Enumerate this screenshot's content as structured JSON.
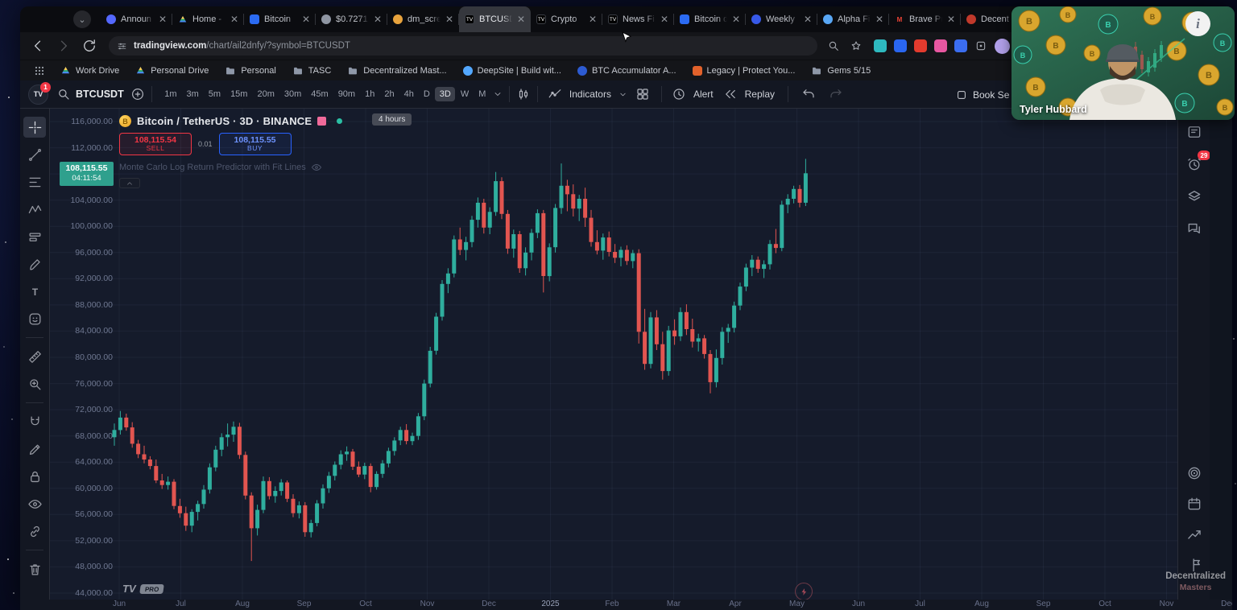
{
  "browser": {
    "tabs": [
      {
        "title": "Announ",
        "icon": "circle",
        "color": "#5468ff"
      },
      {
        "title": "Home -",
        "icon": "drive",
        "color": "#4b8bf5"
      },
      {
        "title": "Bitcoin",
        "icon": "square",
        "color": "#2b6bf3"
      },
      {
        "title": "$0.7271",
        "icon": "circle",
        "color": "#8f96a3"
      },
      {
        "title": "dm_scre",
        "icon": "circle",
        "color": "#e8a33d"
      },
      {
        "title": "BTCUSD",
        "icon": "tv",
        "color": "#000000",
        "active": true
      },
      {
        "title": "Crypto",
        "icon": "tv",
        "color": "#000000"
      },
      {
        "title": "News Fi",
        "icon": "tv",
        "color": "#000000"
      },
      {
        "title": "Bitcoin d",
        "icon": "square",
        "color": "#2b6bf3"
      },
      {
        "title": "Weekly",
        "icon": "circle",
        "color": "#3759e8"
      },
      {
        "title": "Alpha Fi",
        "icon": "circle",
        "color": "#59a7f5"
      },
      {
        "title": "Brave Pr",
        "icon": "m",
        "color": "#ea4335"
      },
      {
        "title": "Decent",
        "icon": "circle",
        "color": "#c0392b"
      },
      {
        "title": "",
        "icon": "square",
        "color": "#2b6bf3"
      }
    ],
    "url_domain": "tradingview.com",
    "url_path": "/chart/ail2dnfy/?symbol=BTCUSDT",
    "bookmarks": [
      {
        "label": "Work Drive",
        "icon": "drive"
      },
      {
        "label": "Personal Drive",
        "icon": "drive"
      },
      {
        "label": "Personal",
        "icon": "folder"
      },
      {
        "label": "TASC",
        "icon": "folder"
      },
      {
        "label": "Decentralized Mast...",
        "icon": "folder"
      },
      {
        "label": "DeepSite | Build wit...",
        "icon": "dot",
        "color": "#53a8ff"
      },
      {
        "label": "BTC Accumulator A...",
        "icon": "dot",
        "color": "#2d5bd1"
      },
      {
        "label": "Legacy | Protect You...",
        "icon": "sq",
        "color": "#e2622b"
      },
      {
        "label": "Gems 5/15",
        "icon": "folder"
      }
    ]
  },
  "tv_toolbar": {
    "logo_badge": "1",
    "symbol": "BTCUSDT",
    "timeframes": [
      "1m",
      "3m",
      "5m",
      "15m",
      "20m",
      "30m",
      "45m",
      "90m",
      "1h",
      "2h",
      "4h",
      "D",
      "3D",
      "W",
      "M"
    ],
    "active_timeframe": "3D",
    "indicators_label": "Indicators",
    "alert_label": "Alert",
    "replay_label": "Replay",
    "book_label": "Book Se"
  },
  "left_toolbar": {
    "active_tool": "crosshair",
    "tools": [
      "crosshair",
      "trend-line",
      "fib-retracement",
      "xabcd-pattern",
      "long-position",
      "brush",
      "text",
      "emoji",
      "|",
      "ruler",
      "zoom-in",
      "|",
      "magnet",
      "drawing-mode",
      "lock",
      "hide-drawings",
      "link-drawings",
      "|",
      "remove-drawings"
    ]
  },
  "legend": {
    "title": "Bitcoin / TetherUS · 3D · BINANCE",
    "sell_price": "108,115.54",
    "sell_label": "SELL",
    "spread": "0.01",
    "buy_price": "108,115.55",
    "buy_label": "BUY",
    "indicator": "Monte Carlo Log Return Predictor with Fit Lines",
    "interval_tooltip": "4 hours"
  },
  "price_scale": {
    "current_price": "108,115.55",
    "current_price_value": 108115.55,
    "countdown": "04:11:54",
    "labels": [
      {
        "price": 116000,
        "text": "116,000.00"
      },
      {
        "price": 112000,
        "text": "112,000.00"
      },
      {
        "price": 104000,
        "text": "104,000.00"
      },
      {
        "price": 100000,
        "text": "100,000.00"
      },
      {
        "price": 96000,
        "text": "96,000.00"
      },
      {
        "price": 92000,
        "text": "92,000.00"
      },
      {
        "price": 88000,
        "text": "88,000.00"
      },
      {
        "price": 84000,
        "text": "84,000.00"
      },
      {
        "price": 80000,
        "text": "80,000.00"
      },
      {
        "price": 76000,
        "text": "76,000.00"
      },
      {
        "price": 72000,
        "text": "72,000.00"
      },
      {
        "price": 68000,
        "text": "68,000.00"
      },
      {
        "price": 64000,
        "text": "64,000.00"
      },
      {
        "price": 60000,
        "text": "60,000.00"
      },
      {
        "price": 56000,
        "text": "56,000.00"
      },
      {
        "price": 52000,
        "text": "52,000.00"
      },
      {
        "price": 48000,
        "text": "48,000.00"
      },
      {
        "price": 44000,
        "text": "44,000.00"
      }
    ]
  },
  "chart_data": {
    "type": "candlestick",
    "title": "Bitcoin / TetherUS",
    "symbol": "BTCUSDT",
    "interval": "3D",
    "exchange": "BINANCE",
    "ylim": [
      44000,
      116000
    ],
    "y_step": 4000,
    "grid": true,
    "x_months": [
      "Jun",
      "Jul",
      "Aug",
      "Sep",
      "Oct",
      "Nov",
      "Dec",
      "2025",
      "Feb",
      "Mar",
      "Apr",
      "May",
      "Jun",
      "Jul",
      "Aug",
      "Sep",
      "Oct",
      "Nov",
      "Dec"
    ],
    "candles": [
      [
        67800,
        69900,
        66500,
        68900
      ],
      [
        68900,
        71800,
        68200,
        70800
      ],
      [
        70800,
        71400,
        68800,
        69300
      ],
      [
        69300,
        70100,
        66200,
        66800
      ],
      [
        66800,
        67400,
        64600,
        65200
      ],
      [
        65200,
        66500,
        63800,
        64400
      ],
      [
        64400,
        64900,
        62900,
        63400
      ],
      [
        63400,
        64400,
        60800,
        61200
      ],
      [
        61200,
        62200,
        59900,
        60500
      ],
      [
        60500,
        61800,
        59800,
        61000
      ],
      [
        61000,
        61400,
        56800,
        57300
      ],
      [
        57300,
        58400,
        55500,
        56200
      ],
      [
        56200,
        57200,
        53500,
        54300
      ],
      [
        54300,
        56800,
        53300,
        56400
      ],
      [
        56400,
        58100,
        55100,
        57600
      ],
      [
        57600,
        60500,
        56900,
        59800
      ],
      [
        59800,
        63800,
        59200,
        63200
      ],
      [
        63200,
        66500,
        62600,
        65900
      ],
      [
        65900,
        68400,
        64900,
        67800
      ],
      [
        67800,
        69900,
        66400,
        68200
      ],
      [
        68200,
        70200,
        67100,
        69400
      ],
      [
        69400,
        70000,
        64500,
        65100
      ],
      [
        65100,
        65600,
        58300,
        58900
      ],
      [
        58900,
        59400,
        48900,
        53900
      ],
      [
        53900,
        57500,
        52800,
        56700
      ],
      [
        56700,
        61800,
        56200,
        61100
      ],
      [
        61100,
        61700,
        58300,
        58800
      ],
      [
        58800,
        60300,
        57800,
        59600
      ],
      [
        59600,
        61400,
        58900,
        60900
      ],
      [
        60900,
        61200,
        57900,
        58400
      ],
      [
        58400,
        59100,
        55600,
        56200
      ],
      [
        56200,
        58000,
        55400,
        57400
      ],
      [
        57400,
        57900,
        52600,
        53300
      ],
      [
        53300,
        55200,
        52500,
        54700
      ],
      [
        54700,
        58200,
        54200,
        57700
      ],
      [
        57700,
        60600,
        56900,
        60000
      ],
      [
        60000,
        62500,
        59300,
        61900
      ],
      [
        61900,
        64100,
        61200,
        63600
      ],
      [
        63600,
        65800,
        62900,
        65200
      ],
      [
        65200,
        66400,
        64200,
        65600
      ],
      [
        65600,
        66000,
        62800,
        63300
      ],
      [
        63300,
        64100,
        61700,
        62100
      ],
      [
        62100,
        63900,
        61400,
        63400
      ],
      [
        63400,
        63800,
        59400,
        60200
      ],
      [
        60200,
        62600,
        59800,
        62200
      ],
      [
        62200,
        64300,
        61600,
        63800
      ],
      [
        63800,
        66200,
        63200,
        65700
      ],
      [
        65700,
        67800,
        65000,
        67300
      ],
      [
        67300,
        69400,
        66600,
        68900
      ],
      [
        68900,
        69800,
        66700,
        67200
      ],
      [
        67200,
        68500,
        66600,
        68000
      ],
      [
        68000,
        71500,
        67400,
        71000
      ],
      [
        71000,
        76600,
        70400,
        76000
      ],
      [
        76000,
        81600,
        75400,
        81000
      ],
      [
        81000,
        86800,
        80400,
        86200
      ],
      [
        86200,
        91800,
        85600,
        91200
      ],
      [
        91200,
        93600,
        89800,
        92800
      ],
      [
        92800,
        98600,
        92200,
        98000
      ],
      [
        98000,
        99800,
        95600,
        96400
      ],
      [
        96400,
        98400,
        94800,
        97600
      ],
      [
        97600,
        101600,
        96800,
        101000
      ],
      [
        101000,
        104400,
        99800,
        103600
      ],
      [
        103600,
        104200,
        98900,
        99800
      ],
      [
        99800,
        102900,
        98800,
        102200
      ],
      [
        102200,
        108300,
        101600,
        106900
      ],
      [
        106900,
        107500,
        101100,
        101900
      ],
      [
        101900,
        102500,
        95800,
        96600
      ],
      [
        96600,
        99500,
        95200,
        98800
      ],
      [
        98800,
        99300,
        92900,
        93600
      ],
      [
        93600,
        96800,
        92500,
        96000
      ],
      [
        96000,
        99600,
        94800,
        99000
      ],
      [
        99000,
        102600,
        98200,
        102000
      ],
      [
        102000,
        102500,
        89900,
        92400
      ],
      [
        92400,
        97400,
        91600,
        96800
      ],
      [
        96800,
        103400,
        96000,
        102800
      ],
      [
        102800,
        109600,
        101900,
        106200
      ],
      [
        106200,
        107100,
        102300,
        104900
      ],
      [
        104900,
        106400,
        101500,
        102700
      ],
      [
        102700,
        104800,
        100800,
        104200
      ],
      [
        104200,
        105900,
        99900,
        101300
      ],
      [
        101300,
        102500,
        96900,
        97600
      ],
      [
        97600,
        99400,
        95700,
        96300
      ],
      [
        96300,
        98900,
        94900,
        98300
      ],
      [
        98300,
        99200,
        95400,
        96100
      ],
      [
        96100,
        97300,
        94400,
        95200
      ],
      [
        95200,
        96900,
        93900,
        96400
      ],
      [
        96400,
        97100,
        94100,
        94700
      ],
      [
        94700,
        96400,
        93600,
        95900
      ],
      [
        95900,
        96500,
        82100,
        83900
      ],
      [
        83900,
        87400,
        78100,
        79000
      ],
      [
        79000,
        86900,
        78300,
        86100
      ],
      [
        86100,
        87200,
        81100,
        82000
      ],
      [
        82000,
        83900,
        76600,
        77900
      ],
      [
        77900,
        84800,
        77200,
        84100
      ],
      [
        84100,
        85800,
        81900,
        83200
      ],
      [
        83200,
        87600,
        82500,
        86900
      ],
      [
        86900,
        88100,
        83400,
        84300
      ],
      [
        84300,
        85900,
        81500,
        82400
      ],
      [
        82400,
        83600,
        80900,
        82900
      ],
      [
        82900,
        83400,
        79800,
        80500
      ],
      [
        80500,
        81100,
        74500,
        76200
      ],
      [
        76200,
        81200,
        75400,
        79900
      ],
      [
        79900,
        84600,
        78900,
        83900
      ],
      [
        83900,
        85100,
        82200,
        84500
      ],
      [
        84500,
        88500,
        83800,
        87900
      ],
      [
        87900,
        91400,
        87200,
        90800
      ],
      [
        90800,
        94300,
        90100,
        93700
      ],
      [
        93700,
        95600,
        92400,
        94900
      ],
      [
        94900,
        95400,
        92900,
        93500
      ],
      [
        93500,
        94800,
        92100,
        94200
      ],
      [
        94200,
        97900,
        93400,
        97300
      ],
      [
        97300,
        99600,
        95900,
        96700
      ],
      [
        96700,
        103900,
        96200,
        103300
      ],
      [
        103300,
        104900,
        102000,
        104200
      ],
      [
        104200,
        106200,
        103500,
        105700
      ],
      [
        105700,
        106300,
        102900,
        103600
      ],
      [
        103600,
        110300,
        103100,
        108100
      ]
    ],
    "colors": {
      "up": "#2fae9e",
      "down": "#e25550"
    }
  },
  "right_sidebar": {
    "top_icons": [
      {
        "name": "watchlist",
        "icon": "panel"
      },
      {
        "name": "alerts",
        "icon": "alarm",
        "badge": "29"
      },
      {
        "name": "object-tree",
        "icon": "layers"
      },
      {
        "name": "chat",
        "icon": "chat"
      }
    ],
    "bottom_icons": [
      {
        "name": "hotlists",
        "icon": "target"
      },
      {
        "name": "calendar",
        "icon": "calendar"
      },
      {
        "name": "ideas",
        "icon": "ideas"
      },
      {
        "name": "public-chats",
        "icon": "signpost"
      }
    ]
  },
  "chart_footer": {
    "logo": "TV",
    "pro_badge": "PRO"
  },
  "watermark": {
    "line1": "Decentralized",
    "line2": "Masters"
  },
  "webcam": {
    "name": "Tyler Hubbard",
    "info_glyph": "i"
  }
}
